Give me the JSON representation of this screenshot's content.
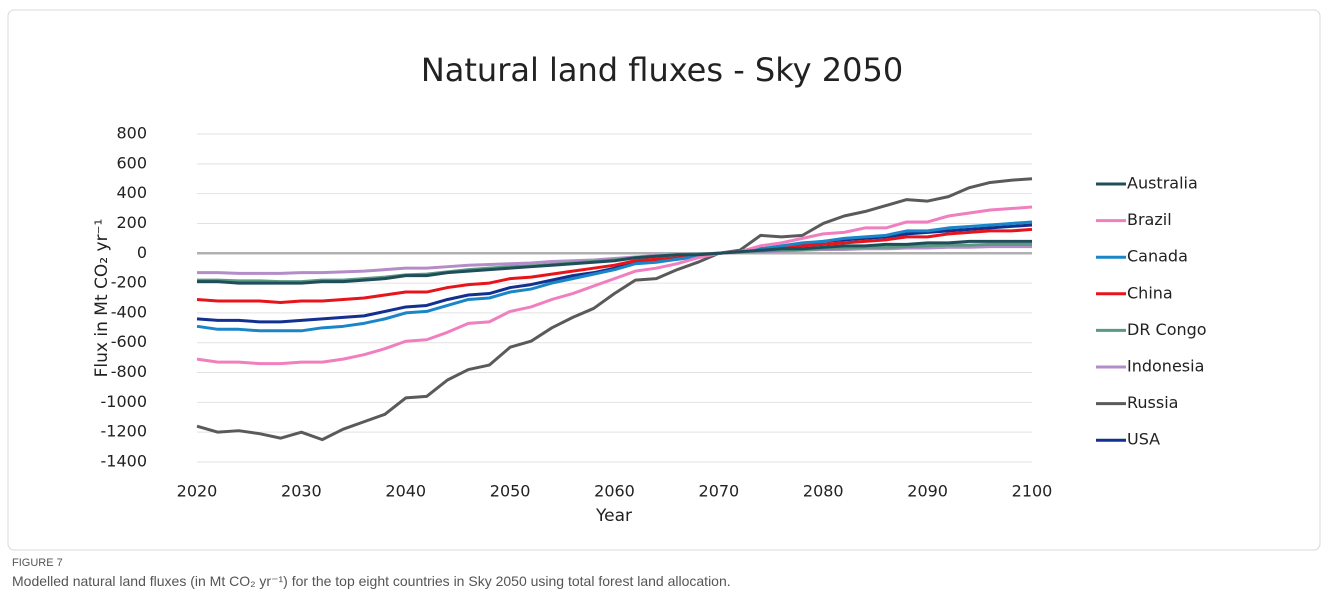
{
  "chart_data": {
    "type": "line",
    "title": "Natural land fluxes - Sky 2050",
    "xlabel": "Year",
    "ylabel": "Flux in Mt CO₂ yr⁻¹",
    "x": [
      2020,
      2022,
      2024,
      2026,
      2028,
      2030,
      2032,
      2034,
      2036,
      2038,
      2040,
      2042,
      2044,
      2046,
      2048,
      2050,
      2052,
      2054,
      2056,
      2058,
      2060,
      2062,
      2064,
      2066,
      2068,
      2070,
      2072,
      2074,
      2076,
      2078,
      2080,
      2082,
      2084,
      2086,
      2088,
      2090,
      2092,
      2094,
      2096,
      2098,
      2100
    ],
    "xlim": [
      2020,
      2100
    ],
    "xticks": [
      2020,
      2030,
      2040,
      2050,
      2060,
      2070,
      2080,
      2090,
      2100
    ],
    "ylim": [
      -1400,
      800
    ],
    "yticks": [
      -1400,
      -1200,
      -1000,
      -800,
      -600,
      -400,
      -200,
      0,
      200,
      400,
      600,
      800
    ],
    "grid": true,
    "legend": "right",
    "series": [
      {
        "name": "Australia",
        "color": "#1f4e5a",
        "values": [
          -190,
          -190,
          -200,
          -200,
          -200,
          -200,
          -190,
          -190,
          -180,
          -170,
          -150,
          -150,
          -130,
          -120,
          -110,
          -100,
          -90,
          -80,
          -70,
          -60,
          -50,
          -30,
          -20,
          -10,
          -10,
          0,
          10,
          20,
          30,
          30,
          40,
          50,
          50,
          60,
          60,
          70,
          70,
          80,
          80,
          80,
          80
        ]
      },
      {
        "name": "Brazil",
        "color": "#f07fbf",
        "values": [
          -710,
          -730,
          -730,
          -740,
          -740,
          -730,
          -730,
          -710,
          -680,
          -640,
          -590,
          -580,
          -530,
          -470,
          -460,
          -390,
          -360,
          -310,
          -270,
          -220,
          -170,
          -120,
          -100,
          -70,
          -30,
          0,
          10,
          50,
          70,
          100,
          130,
          140,
          170,
          170,
          210,
          210,
          250,
          270,
          290,
          300,
          310
        ]
      },
      {
        "name": "Canada",
        "color": "#1a86c8",
        "values": [
          -490,
          -510,
          -510,
          -520,
          -520,
          -520,
          -500,
          -490,
          -470,
          -440,
          -400,
          -390,
          -350,
          -310,
          -300,
          -260,
          -240,
          -200,
          -170,
          -140,
          -110,
          -70,
          -60,
          -40,
          -20,
          0,
          10,
          30,
          50,
          70,
          80,
          100,
          110,
          120,
          150,
          150,
          170,
          180,
          190,
          200,
          210
        ]
      },
      {
        "name": "China",
        "color": "#e8141c",
        "values": [
          -310,
          -320,
          -320,
          -320,
          -330,
          -320,
          -320,
          -310,
          -300,
          -280,
          -260,
          -260,
          -230,
          -210,
          -200,
          -170,
          -160,
          -140,
          -120,
          -100,
          -80,
          -50,
          -40,
          -30,
          -10,
          0,
          10,
          30,
          40,
          50,
          60,
          70,
          80,
          90,
          110,
          110,
          130,
          140,
          150,
          150,
          160
        ]
      },
      {
        "name": "DR Congo",
        "color": "#5a9a82",
        "values": [
          -180,
          -180,
          -185,
          -185,
          -190,
          -190,
          -180,
          -180,
          -170,
          -160,
          -145,
          -140,
          -125,
          -110,
          -100,
          -90,
          -85,
          -75,
          -65,
          -55,
          -45,
          -30,
          -20,
          -10,
          -5,
          0,
          10,
          15,
          20,
          25,
          30,
          35,
          40,
          40,
          45,
          50,
          55,
          55,
          60,
          60,
          60
        ]
      },
      {
        "name": "Indonesia",
        "color": "#b48cc8",
        "values": [
          -130,
          -130,
          -135,
          -135,
          -135,
          -130,
          -130,
          -125,
          -120,
          -110,
          -100,
          -100,
          -90,
          -80,
          -75,
          -70,
          -65,
          -55,
          -50,
          -45,
          -35,
          -25,
          -15,
          -10,
          -5,
          0,
          5,
          10,
          15,
          20,
          25,
          25,
          30,
          30,
          35,
          35,
          40,
          40,
          45,
          45,
          45
        ]
      },
      {
        "name": "Russia",
        "color": "#5a5a5a",
        "values": [
          -1160,
          -1200,
          -1190,
          -1210,
          -1240,
          -1200,
          -1250,
          -1180,
          -1130,
          -1080,
          -970,
          -960,
          -850,
          -780,
          -750,
          -630,
          -590,
          -500,
          -430,
          -370,
          -270,
          -180,
          -170,
          -110,
          -60,
          0,
          20,
          120,
          110,
          120,
          200,
          250,
          280,
          320,
          360,
          350,
          380,
          440,
          475,
          490,
          500
        ]
      },
      {
        "name": "USA",
        "color": "#12308f",
        "values": [
          -440,
          -450,
          -450,
          -460,
          -460,
          -450,
          -440,
          -430,
          -420,
          -390,
          -360,
          -350,
          -310,
          -280,
          -270,
          -230,
          -210,
          -180,
          -150,
          -130,
          -100,
          -60,
          -50,
          -40,
          -20,
          0,
          10,
          30,
          40,
          60,
          80,
          90,
          100,
          110,
          130,
          140,
          150,
          160,
          170,
          180,
          190
        ]
      }
    ]
  },
  "caption": {
    "label": "FIGURE 7",
    "text": "Modelled natural land fluxes (in Mt CO₂ yr⁻¹) for the top eight countries in Sky 2050 using total forest land allocation."
  }
}
